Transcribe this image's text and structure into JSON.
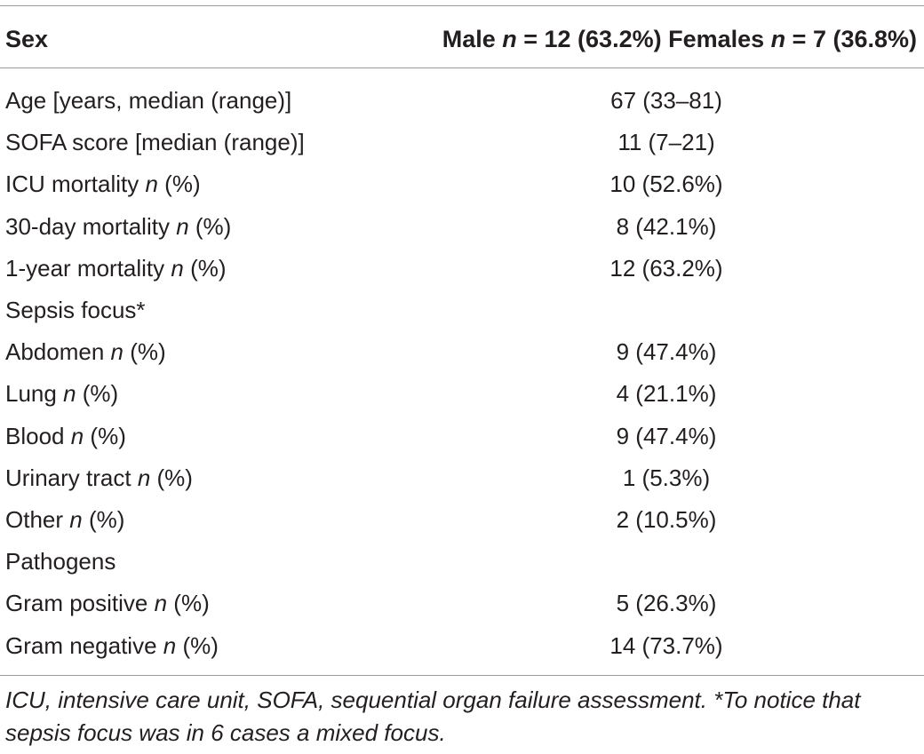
{
  "table": {
    "header": {
      "col1": "Sex",
      "col2_pre": "Male ",
      "col2_n": "n",
      "col2_mid": " = 12 (63.2%) Females ",
      "col2_n2": "n",
      "col2_post": " = 7 (36.8%)"
    },
    "rows": [
      {
        "label": "Age [years, median (range)]",
        "suffix_n": "",
        "suffix": "",
        "value": "67 (33–81)"
      },
      {
        "label": "SOFA score [median (range)]",
        "suffix_n": "",
        "suffix": "",
        "value": "11 (7–21)"
      },
      {
        "label": "ICU mortality ",
        "suffix_n": "n",
        "suffix": " (%)",
        "value": "10 (52.6%)"
      },
      {
        "label": "30-day mortality ",
        "suffix_n": "n",
        "suffix": " (%)",
        "value": "8 (42.1%)"
      },
      {
        "label": "1-year mortality ",
        "suffix_n": "n",
        "suffix": " (%)",
        "value": "12 (63.2%)"
      },
      {
        "label": "Sepsis focus*",
        "suffix_n": "",
        "suffix": "",
        "value": ""
      },
      {
        "label": "Abdomen ",
        "suffix_n": "n",
        "suffix": " (%)",
        "value": "9 (47.4%)"
      },
      {
        "label": "Lung ",
        "suffix_n": "n",
        "suffix": " (%)",
        "value": "4 (21.1%)"
      },
      {
        "label": "Blood ",
        "suffix_n": "n",
        "suffix": " (%)",
        "value": "9 (47.4%)"
      },
      {
        "label": "Urinary tract ",
        "suffix_n": "n",
        "suffix": " (%)",
        "value": "1 (5.3%)"
      },
      {
        "label": "Other ",
        "suffix_n": "n",
        "suffix": " (%)",
        "value": "2 (10.5%)"
      },
      {
        "label": "Pathogens",
        "suffix_n": "",
        "suffix": "",
        "value": ""
      },
      {
        "label": "Gram positive ",
        "suffix_n": "n",
        "suffix": " (%)",
        "value": "5 (26.3%)"
      },
      {
        "label": "Gram negative ",
        "suffix_n": "n",
        "suffix": " (%)",
        "value": "14 (73.7%)"
      }
    ],
    "footnote": "ICU, intensive care unit, SOFA, sequential organ failure assessment. *To notice that sepsis focus was in 6 cases a mixed focus."
  }
}
